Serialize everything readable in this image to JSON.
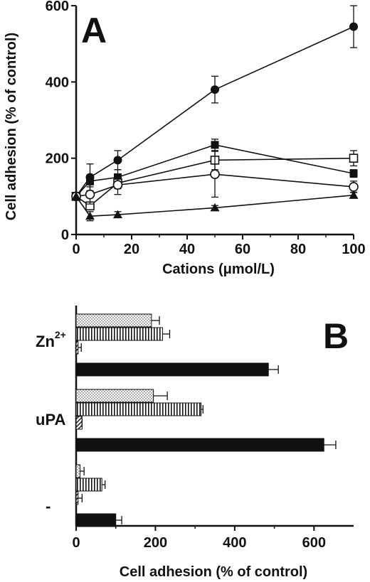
{
  "chart_data": [
    {
      "panel": "A",
      "type": "line",
      "xlabel": "Cations (μmol/L)",
      "ylabel": "Cell adhesion (% of control)",
      "xlim": [
        0,
        100
      ],
      "ylim": [
        0,
        600
      ],
      "xticks": [
        "0",
        "20",
        "40",
        "60",
        "80",
        "100"
      ],
      "yticks": [
        "0",
        "200",
        "400",
        "600"
      ],
      "series": [
        {
          "marker": "filled-circle",
          "x": [
            0,
            5,
            15,
            50,
            100
          ],
          "y": [
            100,
            150,
            195,
            380,
            545
          ],
          "err": [
            10,
            35,
            25,
            35,
            55
          ]
        },
        {
          "marker": "filled-square",
          "x": [
            0,
            5,
            15,
            50,
            100
          ],
          "y": [
            100,
            140,
            150,
            235,
            160
          ],
          "err": [
            10,
            15,
            20,
            15,
            10
          ]
        },
        {
          "marker": "open-square",
          "x": [
            0,
            5,
            15,
            50,
            100
          ],
          "y": [
            100,
            75,
            135,
            195,
            200
          ],
          "err": [
            10,
            10,
            15,
            25,
            20
          ]
        },
        {
          "marker": "open-circle",
          "x": [
            0,
            5,
            15,
            50,
            100
          ],
          "y": [
            100,
            105,
            130,
            158,
            125
          ],
          "err": [
            10,
            25,
            25,
            60,
            15
          ]
        },
        {
          "marker": "filled-triangle",
          "x": [
            0,
            5,
            15,
            50,
            100
          ],
          "y": [
            100,
            48,
            52,
            70,
            103
          ],
          "err": [
            10,
            12,
            8,
            6,
            8
          ]
        }
      ]
    },
    {
      "panel": "B",
      "type": "bar",
      "orientation": "horizontal",
      "xlabel": "Cell adhesion (% of control)",
      "xlim": [
        0,
        700
      ],
      "xticks": [
        "0",
        "200",
        "400",
        "600"
      ],
      "categories": [
        "Zn",
        "uPA",
        "-"
      ],
      "category_superscripts": [
        "2+",
        "",
        ""
      ],
      "series": [
        {
          "pattern": "dotted",
          "values": [
            190,
            195,
            10
          ],
          "err": [
            20,
            35,
            10
          ]
        },
        {
          "pattern": "vertical-stripes",
          "values": [
            218,
            315,
            65
          ],
          "err": [
            18,
            5,
            8
          ]
        },
        {
          "pattern": "diagonal-hatch",
          "values": [
            5,
            15,
            5
          ],
          "err": [
            8,
            0,
            10
          ]
        },
        {
          "pattern": "solid",
          "values": [
            485,
            625,
            100
          ],
          "err": [
            25,
            30,
            15
          ]
        }
      ]
    }
  ]
}
